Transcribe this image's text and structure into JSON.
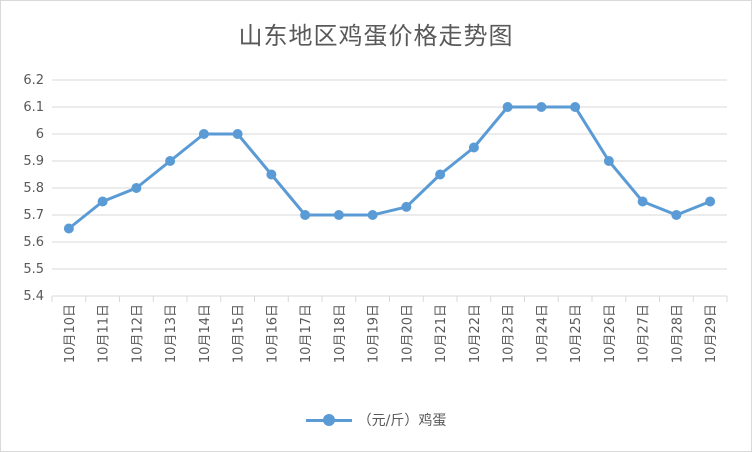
{
  "chart_data": {
    "type": "line",
    "title": "山东地区鸡蛋价格走势图",
    "categories": [
      "10月10日",
      "10月11日",
      "10月12日",
      "10月13日",
      "10月14日",
      "10月15日",
      "10月16日",
      "10月17日",
      "10月18日",
      "10月19日",
      "10月20日",
      "10月21日",
      "10月22日",
      "10月23日",
      "10月24日",
      "10月25日",
      "10月26日",
      "10月27日",
      "10月28日",
      "10月29日"
    ],
    "series": [
      {
        "name": "（元/斤）鸡蛋",
        "values": [
          5.65,
          5.75,
          5.8,
          5.9,
          6.0,
          6.0,
          5.85,
          5.7,
          5.7,
          5.7,
          5.73,
          5.85,
          5.95,
          6.1,
          6.1,
          6.1,
          5.9,
          5.75,
          5.7,
          5.75
        ],
        "color": "#5B9BD5"
      }
    ],
    "yticks": [
      "5.4",
      "5.5",
      "5.6",
      "5.7",
      "5.8",
      "5.9",
      "6",
      "6.1",
      "6.2"
    ],
    "ylim": [
      5.4,
      6.2
    ],
    "grid": true,
    "legend": "bottom"
  }
}
